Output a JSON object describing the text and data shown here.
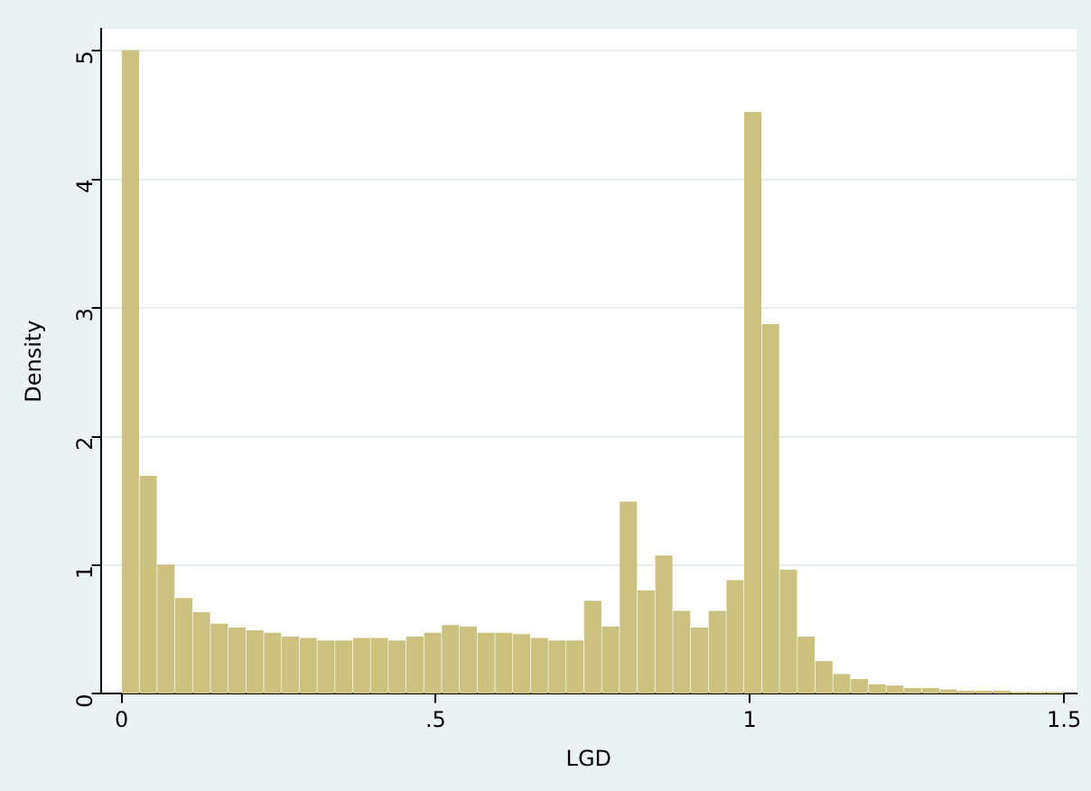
{
  "chart_data": {
    "type": "histogram",
    "xlabel": "LGD",
    "ylabel": "Density",
    "color": "#cbc27f",
    "bins": [
      0,
      0.0283,
      0.0566,
      0.0849,
      0.1132,
      0.1415,
      0.1698,
      0.1981,
      0.2264,
      0.2547,
      0.283,
      0.3113,
      0.3396,
      0.3679,
      0.3962,
      0.4245,
      0.4528,
      0.4811,
      0.5094,
      0.5377,
      0.566,
      0.5943,
      0.6226,
      0.6509,
      0.6792,
      0.7075,
      0.7358,
      0.7642,
      0.7925,
      0.8208,
      0.8491,
      0.8774,
      0.9057,
      0.934,
      0.9623,
      0.9906,
      1.0189,
      1.0472,
      1.0755,
      1.1038,
      1.1321,
      1.1604,
      1.1887,
      1.217,
      1.2453,
      1.2736,
      1.3019,
      1.3302,
      1.3585,
      1.3868,
      1.4151,
      1.4434,
      1.4717,
      1.5
    ],
    "values": [
      5.0,
      1.69,
      1.0,
      0.74,
      0.63,
      0.54,
      0.51,
      0.49,
      0.47,
      0.44,
      0.43,
      0.41,
      0.41,
      0.43,
      0.43,
      0.41,
      0.44,
      0.47,
      0.53,
      0.52,
      0.47,
      0.47,
      0.46,
      0.43,
      0.41,
      0.41,
      0.72,
      0.52,
      1.49,
      0.8,
      1.07,
      0.64,
      0.51,
      0.64,
      0.88,
      4.52,
      2.87,
      0.96,
      0.44,
      0.25,
      0.15,
      0.11,
      0.07,
      0.06,
      0.04,
      0.04,
      0.03,
      0.02,
      0.02,
      0.02,
      0.01,
      0.01,
      0.01
    ],
    "xlim": [
      -0.033,
      1.52
    ],
    "xticks": [
      0,
      {
        "value": 0.5,
        "label": ".5"
      },
      1,
      1.5
    ],
    "ylim": [
      0,
      5.17
    ],
    "yticks": [
      0,
      1,
      2,
      3,
      4,
      5
    ],
    "grid": "y"
  }
}
